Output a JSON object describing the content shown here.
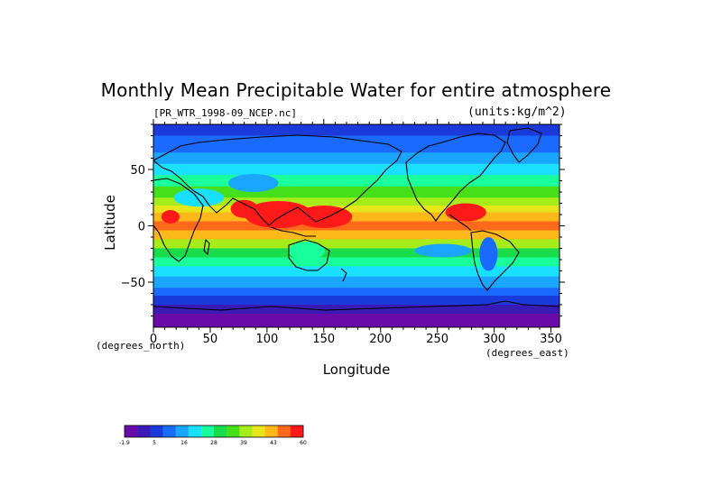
{
  "title": "Monthly Mean Precipitable Water for entire atmosphere",
  "subtitle_file": "[PR_WTR_1998-09_NCEP.nc]",
  "subtitle_units": "(units:kg/m^2)",
  "y_axis": {
    "label": "Latitude",
    "units": "(degrees_north)",
    "ticks": [
      {
        "value": 50,
        "label": "50"
      },
      {
        "value": 0,
        "label": "0"
      },
      {
        "value": -50,
        "label": "−50"
      }
    ]
  },
  "x_axis": {
    "label": "Longitude",
    "units": "(degrees_east)",
    "ticks": [
      {
        "value": 0,
        "label": "0"
      },
      {
        "value": 50,
        "label": "50"
      },
      {
        "value": 100,
        "label": "100"
      },
      {
        "value": 150,
        "label": "150"
      },
      {
        "value": 200,
        "label": "200"
      },
      {
        "value": 250,
        "label": "250"
      },
      {
        "value": 300,
        "label": "300"
      },
      {
        "value": 350,
        "label": "350"
      }
    ]
  },
  "colorbar": {
    "colors": [
      "#6a0aa8",
      "#3a1ab5",
      "#1a3ad9",
      "#1a6aff",
      "#1aa6ff",
      "#1ae0ff",
      "#1aff9c",
      "#1adc4a",
      "#46e01a",
      "#a6ec1a",
      "#e6e61a",
      "#ffb81a",
      "#ff6a1a",
      "#ff1a1a"
    ],
    "labels": [
      "-1.9",
      "5",
      "16",
      "28",
      "39",
      "43",
      "60"
    ]
  },
  "map_data": {
    "xlim": [
      0,
      357.5
    ],
    "ylim": [
      -90,
      90
    ],
    "lat_bands": [
      {
        "lat_min": 80,
        "lat_max": 90,
        "color": "#1a3ad9"
      },
      {
        "lat_min": 65,
        "lat_max": 80,
        "color": "#1a6aff"
      },
      {
        "lat_min": 55,
        "lat_max": 65,
        "color": "#1aa6ff"
      },
      {
        "lat_min": 45,
        "lat_max": 55,
        "color": "#1ae0ff"
      },
      {
        "lat_min": 35,
        "lat_max": 45,
        "color": "#1aff9c"
      },
      {
        "lat_min": 25,
        "lat_max": 35,
        "color": "#46e01a"
      },
      {
        "lat_min": 18,
        "lat_max": 25,
        "color": "#a6ec1a"
      },
      {
        "lat_min": 12,
        "lat_max": 18,
        "color": "#e6e61a"
      },
      {
        "lat_min": 4,
        "lat_max": 12,
        "color": "#ffb81a"
      },
      {
        "lat_min": -4,
        "lat_max": 4,
        "color": "#ff6a1a"
      },
      {
        "lat_min": -12,
        "lat_max": -4,
        "color": "#ffb81a"
      },
      {
        "lat_min": -20,
        "lat_max": -12,
        "color": "#a6ec1a"
      },
      {
        "lat_min": -28,
        "lat_max": -20,
        "color": "#1adc4a"
      },
      {
        "lat_min": -36,
        "lat_max": -28,
        "color": "#1aff9c"
      },
      {
        "lat_min": -45,
        "lat_max": -36,
        "color": "#1ae0ff"
      },
      {
        "lat_min": -55,
        "lat_max": -45,
        "color": "#1aa6ff"
      },
      {
        "lat_min": -62,
        "lat_max": -55,
        "color": "#1a6aff"
      },
      {
        "lat_min": -70,
        "lat_max": -62,
        "color": "#1a3ad9"
      },
      {
        "lat_min": -78,
        "lat_max": -70,
        "color": "#3a1ab5"
      },
      {
        "lat_min": -90,
        "lat_max": -78,
        "color": "#6a0aa8"
      }
    ],
    "hotspots": [
      {
        "lon": 110,
        "lat": 10,
        "rlon": 30,
        "rlat": 12,
        "color": "#ff1a1a"
      },
      {
        "lon": 80,
        "lat": 15,
        "rlon": 12,
        "rlat": 8,
        "color": "#ff1a1a"
      },
      {
        "lon": 150,
        "lat": 8,
        "rlon": 25,
        "rlat": 10,
        "color": "#ff1a1a"
      },
      {
        "lon": 275,
        "lat": 12,
        "rlon": 18,
        "rlat": 8,
        "color": "#ff1a1a"
      },
      {
        "lon": 15,
        "lat": 8,
        "rlon": 8,
        "rlat": 6,
        "color": "#ff1a1a"
      },
      {
        "lon": 40,
        "lat": 25,
        "rlon": 22,
        "rlat": 8,
        "color": "#1ae0ff"
      },
      {
        "lon": 88,
        "lat": 38,
        "rlon": 22,
        "rlat": 8,
        "color": "#1aa6ff"
      },
      {
        "lon": 255,
        "lat": -22,
        "rlon": 25,
        "rlat": 6,
        "color": "#1aa6ff"
      },
      {
        "lon": 295,
        "lat": -25,
        "rlon": 8,
        "rlat": 15,
        "color": "#1a6aff"
      },
      {
        "lon": 135,
        "lat": -22,
        "rlon": 16,
        "rlat": 8,
        "color": "#1aff9c"
      }
    ]
  }
}
